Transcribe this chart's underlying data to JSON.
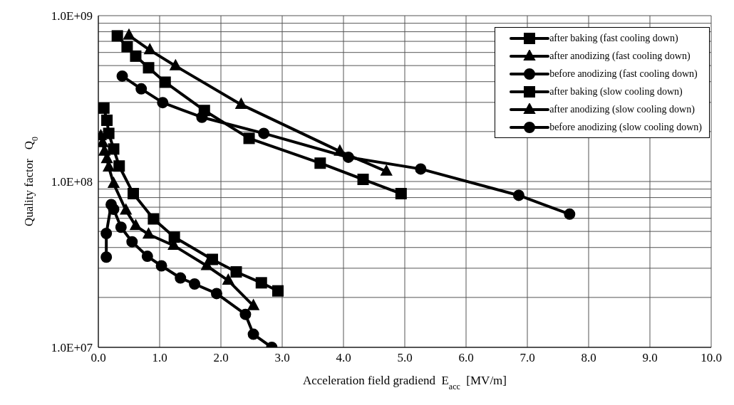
{
  "chart_data": {
    "type": "line",
    "xlabel": "Acceleration field gradiend  E$_{acc}$  [MV/m]",
    "ylabel": "Quality factor   Q$_{0}$",
    "xlim": [
      0,
      10
    ],
    "xticks": [
      {
        "value": 0,
        "label": "0.0"
      },
      {
        "value": 1,
        "label": "1.0"
      },
      {
        "value": 2,
        "label": "2.0"
      },
      {
        "value": 3,
        "label": "3.0"
      },
      {
        "value": 4,
        "label": "4.0"
      },
      {
        "value": 5,
        "label": "5.0"
      },
      {
        "value": 6,
        "label": "6.0"
      },
      {
        "value": 7,
        "label": "7.0"
      },
      {
        "value": 8,
        "label": "8.0"
      },
      {
        "value": 9,
        "label": "9.0"
      },
      {
        "value": 10,
        "label": "10.0"
      }
    ],
    "ylim": [
      10000000,
      1000000000
    ],
    "log": "y",
    "yticks": [
      {
        "value": 10000000,
        "label": "1.0E+07"
      },
      {
        "value": 20000000,
        "label": null
      },
      {
        "value": 30000000,
        "label": null
      },
      {
        "value": 40000000,
        "label": null
      },
      {
        "value": 50000000,
        "label": null
      },
      {
        "value": 60000000,
        "label": null
      },
      {
        "value": 70000000,
        "label": null
      },
      {
        "value": 80000000,
        "label": null
      },
      {
        "value": 90000000,
        "label": null
      },
      {
        "value": 100000000,
        "label": "1.0E+08"
      },
      {
        "value": 200000000,
        "label": null
      },
      {
        "value": 300000000,
        "label": null
      },
      {
        "value": 400000000,
        "label": null
      },
      {
        "value": 500000000,
        "label": null
      },
      {
        "value": 600000000,
        "label": null
      },
      {
        "value": 700000000,
        "label": null
      },
      {
        "value": 800000000,
        "label": null
      },
      {
        "value": 900000000,
        "label": null
      },
      {
        "value": 1000000000,
        "label": "1.0E+09"
      }
    ],
    "grid": true,
    "legend": "top right",
    "line_style": "solid",
    "series": [
      {
        "name": "after baking (fast cooling down)",
        "color": "#000000",
        "marker": "square",
        "x": [
          0.31,
          0.47,
          0.61,
          0.82,
          1.09,
          1.73,
          2.46,
          3.62,
          4.32,
          4.94
        ],
        "values": [
          755000000,
          650000000,
          570000000,
          485000000,
          397000000,
          268000000,
          182000000,
          129000000,
          103000000,
          84500000
        ]
      },
      {
        "name": "after anodizing (fast cooling down)",
        "color": "#000000",
        "marker": "triangle",
        "x": [
          0.5,
          0.84,
          1.26,
          2.33,
          3.94,
          4.7
        ],
        "values": [
          760000000,
          620000000,
          497000000,
          291000000,
          152000000,
          115000000
        ]
      },
      {
        "name": "before anodizing (fast cooling down)",
        "color": "#000000",
        "marker": "circle",
        "x": [
          0.39,
          0.7,
          1.05,
          1.69,
          2.7,
          4.08,
          5.26,
          6.86,
          7.69
        ],
        "values": [
          432000000,
          362000000,
          299000000,
          244000000,
          195000000,
          140000000,
          119000000,
          82500000,
          63600000
        ]
      },
      {
        "name": "after baking (slow cooling down)",
        "color": "#000000",
        "marker": "square",
        "x": [
          0.09,
          0.14,
          0.17,
          0.25,
          0.34,
          0.57,
          0.9,
          1.24,
          1.86,
          2.25,
          2.66,
          2.93
        ],
        "values": [
          277000000,
          234000000,
          195000000,
          157000000,
          124000000,
          84500000,
          59500000,
          46200000,
          33900000,
          28500000,
          24500000,
          21900000
        ]
      },
      {
        "name": "after anodizing (slow cooling down)",
        "color": "#000000",
        "marker": "triangle",
        "x": [
          0.04,
          0.07,
          0.1,
          0.14,
          0.17,
          0.25,
          0.45,
          0.61,
          0.82,
          1.23,
          1.77,
          2.12,
          2.53
        ],
        "values": [
          188000000,
          171000000,
          152000000,
          137000000,
          122000000,
          97000000,
          67000000,
          54000000,
          48000000,
          41100000,
          31000000,
          25300000,
          17800000
        ]
      },
      {
        "name": "before anodizing (slow cooling down)",
        "color": "#000000",
        "marker": "circle",
        "x": [
          0.13,
          0.13,
          0.21,
          0.25,
          0.37,
          0.55,
          0.8,
          1.03,
          1.34,
          1.57,
          1.93,
          2.4,
          2.53,
          2.83
        ],
        "values": [
          35000000,
          48600000,
          72600000,
          68000000,
          53000000,
          43300000,
          35400000,
          31000000,
          26200000,
          24100000,
          21100000,
          15800000,
          12000000,
          10000000
        ]
      }
    ]
  }
}
